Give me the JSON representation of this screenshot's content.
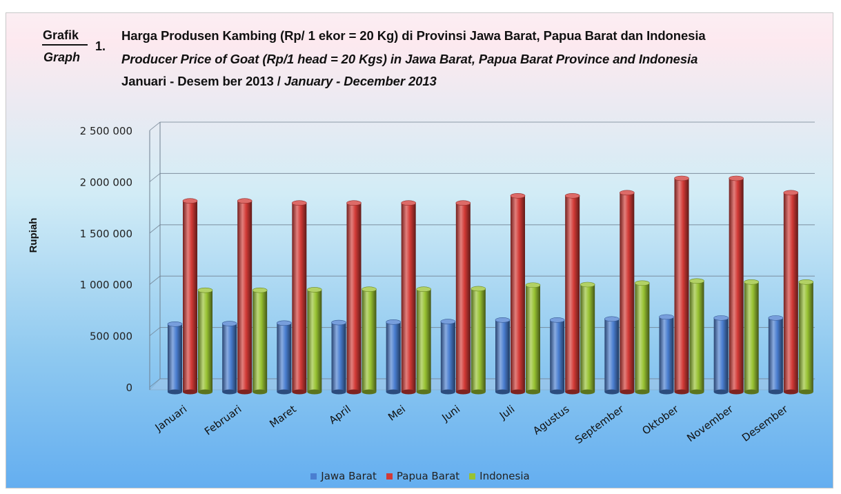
{
  "header": {
    "grafik_label": "Grafik",
    "graph_label": "Graph",
    "number": "1.",
    "title_id": "Harga Produsen Kambing (Rp/ 1 ekor = 20 Kg) di Provinsi Jawa Barat, Papua Barat dan Indonesia",
    "title_en": "Producer Price of Goat (Rp/1 head = 20 Kgs) in Jawa Barat, Papua Barat Province and Indonesia",
    "period_id": "Januari - Desem ber 2013 / ",
    "period_en": "January - December 2013"
  },
  "chart_data": {
    "type": "bar",
    "ylabel": "Rupiah",
    "xlabel": "",
    "ylim": [
      0,
      2500000
    ],
    "y_ticks": [
      0,
      500000,
      1000000,
      1500000,
      2000000,
      2500000
    ],
    "y_tick_labels": [
      "0",
      "500 000",
      "1 000 000",
      "1 500 000",
      "2 000 000",
      "2 500 000"
    ],
    "categories": [
      "Januari",
      "Februari",
      "Maret",
      "April",
      "Mei",
      "Juni",
      "Juli",
      "Agustus",
      "September",
      "Oktober",
      "November",
      "Desember"
    ],
    "grid": true,
    "legend_position": "bottom",
    "series": [
      {
        "name": "Jawa Barat",
        "color": "#4a7ed0",
        "values": [
          660000,
          665000,
          670000,
          675000,
          680000,
          685000,
          700000,
          700000,
          710000,
          730000,
          720000,
          720000
        ]
      },
      {
        "name": "Papua Barat",
        "color": "#d23a36",
        "values": [
          1860000,
          1860000,
          1840000,
          1840000,
          1840000,
          1840000,
          1910000,
          1910000,
          1940000,
          2080000,
          2080000,
          1940000
        ]
      },
      {
        "name": "Indonesia",
        "color": "#98c232",
        "values": [
          990000,
          990000,
          995000,
          1000000,
          1000000,
          1005000,
          1040000,
          1045000,
          1060000,
          1080000,
          1070000,
          1070000
        ]
      }
    ]
  }
}
